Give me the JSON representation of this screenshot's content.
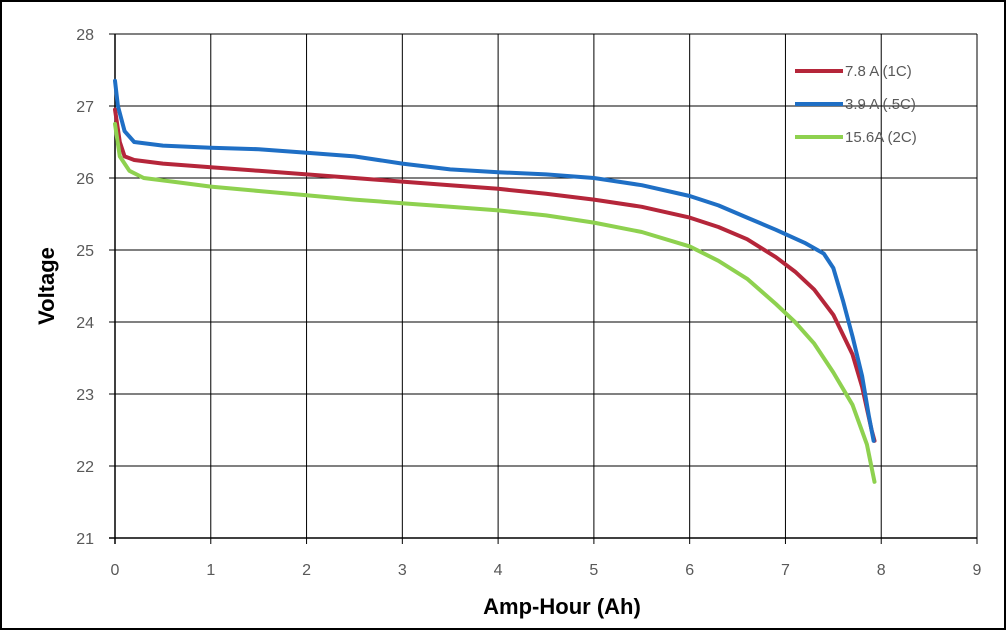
{
  "chart_data": {
    "type": "line",
    "title": "",
    "xlabel": "Amp-Hour (Ah)",
    "ylabel": "Voltage",
    "xlim": [
      0,
      9
    ],
    "ylim": [
      21,
      28
    ],
    "x_ticks": [
      "0",
      "1",
      "2",
      "3",
      "4",
      "5",
      "6",
      "7",
      "8",
      "9"
    ],
    "y_ticks": [
      "21",
      "22",
      "23",
      "24",
      "25",
      "26",
      "27",
      "28"
    ],
    "grid": true,
    "legend_position": "top-right",
    "series": [
      {
        "name": "7.8 A (1C)",
        "color": "#b5263a",
        "points": [
          [
            0.0,
            26.95
          ],
          [
            0.05,
            26.5
          ],
          [
            0.1,
            26.3
          ],
          [
            0.2,
            26.25
          ],
          [
            0.5,
            26.2
          ],
          [
            1.0,
            26.15
          ],
          [
            1.5,
            26.1
          ],
          [
            2.0,
            26.05
          ],
          [
            2.5,
            26.0
          ],
          [
            3.0,
            25.95
          ],
          [
            3.5,
            25.9
          ],
          [
            4.0,
            25.85
          ],
          [
            4.5,
            25.78
          ],
          [
            5.0,
            25.7
          ],
          [
            5.5,
            25.6
          ],
          [
            6.0,
            25.45
          ],
          [
            6.3,
            25.32
          ],
          [
            6.6,
            25.15
          ],
          [
            6.9,
            24.9
          ],
          [
            7.1,
            24.7
          ],
          [
            7.3,
            24.45
          ],
          [
            7.5,
            24.1
          ],
          [
            7.7,
            23.55
          ],
          [
            7.8,
            23.1
          ],
          [
            7.9,
            22.5
          ],
          [
            7.93,
            22.35
          ]
        ]
      },
      {
        "name": "3.9 A (.5C)",
        "color": "#1f6fc5",
        "points": [
          [
            0.0,
            27.35
          ],
          [
            0.03,
            27.0
          ],
          [
            0.1,
            26.65
          ],
          [
            0.2,
            26.5
          ],
          [
            0.5,
            26.45
          ],
          [
            1.0,
            26.42
          ],
          [
            1.5,
            26.4
          ],
          [
            2.0,
            26.35
          ],
          [
            2.5,
            26.3
          ],
          [
            3.0,
            26.2
          ],
          [
            3.5,
            26.12
          ],
          [
            4.0,
            26.08
          ],
          [
            4.5,
            26.05
          ],
          [
            5.0,
            26.0
          ],
          [
            5.5,
            25.9
          ],
          [
            6.0,
            25.75
          ],
          [
            6.3,
            25.62
          ],
          [
            6.6,
            25.45
          ],
          [
            6.9,
            25.28
          ],
          [
            7.2,
            25.1
          ],
          [
            7.4,
            24.95
          ],
          [
            7.5,
            24.75
          ],
          [
            7.6,
            24.3
          ],
          [
            7.7,
            23.8
          ],
          [
            7.8,
            23.25
          ],
          [
            7.87,
            22.7
          ],
          [
            7.92,
            22.35
          ]
        ]
      },
      {
        "name": "15.6A (2C)",
        "color": "#8ed14f",
        "points": [
          [
            0.0,
            26.75
          ],
          [
            0.05,
            26.3
          ],
          [
            0.15,
            26.1
          ],
          [
            0.3,
            26.0
          ],
          [
            0.6,
            25.95
          ],
          [
            1.0,
            25.88
          ],
          [
            1.5,
            25.82
          ],
          [
            2.0,
            25.76
          ],
          [
            2.5,
            25.7
          ],
          [
            3.0,
            25.65
          ],
          [
            3.5,
            25.6
          ],
          [
            4.0,
            25.55
          ],
          [
            4.5,
            25.48
          ],
          [
            5.0,
            25.38
          ],
          [
            5.5,
            25.25
          ],
          [
            6.0,
            25.05
          ],
          [
            6.3,
            24.85
          ],
          [
            6.6,
            24.6
          ],
          [
            6.9,
            24.25
          ],
          [
            7.1,
            24.0
          ],
          [
            7.3,
            23.7
          ],
          [
            7.5,
            23.3
          ],
          [
            7.7,
            22.85
          ],
          [
            7.85,
            22.3
          ],
          [
            7.93,
            21.78
          ]
        ]
      }
    ]
  }
}
